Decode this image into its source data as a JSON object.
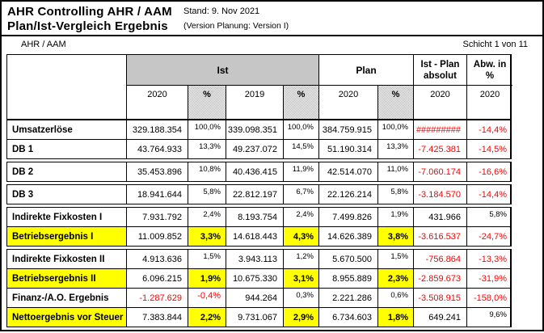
{
  "title": {
    "line1": "AHR Controlling AHR / AAM",
    "line2": "Plan/Ist-Vergleich Ergebnis",
    "stand": "Stand: 9. Nov 2021",
    "version": "(Version Planung: Version I)"
  },
  "meta": {
    "unit": "AHR / AAM",
    "schicht": "Schicht 1 von 11"
  },
  "colors": {
    "header_gray": "#c6c6c6",
    "highlight_yellow": "#ffff00",
    "negative_red": "#ff0000"
  },
  "table": {
    "groups": {
      "ist": "Ist",
      "plan": "Plan",
      "ist_plan": "Ist - Plan absolut",
      "abw": "Abw. in %"
    },
    "subheaders": {
      "ist_2020": "2020",
      "ist_pct_1": "%",
      "ist_2019": "2019",
      "ist_pct_2": "%",
      "plan_2020": "2020",
      "plan_pct": "%",
      "diff_2020": "2020",
      "abw_2020": "2020"
    },
    "rows": [
      {
        "label": "Umsatzerlöse",
        "ist2020": "329.188.354",
        "istPct2020": "100,0%",
        "ist2019": "339.098.351",
        "istPct2019": "100,0%",
        "plan2020": "384.759.915",
        "planPct": "100,0%",
        "diff": "#########",
        "abw": "-14,4%"
      },
      {
        "label": "DB 1",
        "ist2020": "43.764.933",
        "istPct2020": "13,3%",
        "ist2019": "49.237.072",
        "istPct2019": "14,5%",
        "plan2020": "51.190.314",
        "planPct": "13,3%",
        "diff": "-7.425.381",
        "abw": "-14,5%"
      },
      {
        "label": "DB 2",
        "ist2020": "35.453.896",
        "istPct2020": "10,8%",
        "ist2019": "40.436.415",
        "istPct2019": "11,9%",
        "plan2020": "42.514.070",
        "planPct": "11,0%",
        "diff": "-7.060.174",
        "abw": "-16,6%"
      },
      {
        "label": "DB 3",
        "ist2020": "18.941.644",
        "istPct2020": "5,8%",
        "ist2019": "22.812.197",
        "istPct2019": "6,7%",
        "plan2020": "22.126.214",
        "planPct": "5,8%",
        "diff": "-3.184.570",
        "abw": "-14,4%"
      },
      {
        "label": "Indirekte Fixkosten I",
        "ist2020": "7.931.792",
        "istPct2020": "2,4%",
        "ist2019": "8.193.754",
        "istPct2019": "2,4%",
        "plan2020": "7.499.826",
        "planPct": "1,9%",
        "diff": "431.966",
        "abw": "5,8%"
      },
      {
        "label": "Betriebsergebnis I",
        "ist2020": "11.009.852",
        "istPct2020": "3,3%",
        "ist2019": "14.618.443",
        "istPct2019": "4,3%",
        "plan2020": "14.626.389",
        "planPct": "3,8%",
        "diff": "-3.616.537",
        "abw": "-24,7%"
      },
      {
        "label": "Indirekte Fixkosten II",
        "ist2020": "4.913.636",
        "istPct2020": "1,5%",
        "ist2019": "3.943.113",
        "istPct2019": "1,2%",
        "plan2020": "5.670.500",
        "planPct": "1,5%",
        "diff": "-756.864",
        "abw": "-13,3%"
      },
      {
        "label": "Betriebsergebnis II",
        "ist2020": "6.096.215",
        "istPct2020": "1,9%",
        "ist2019": "10.675.330",
        "istPct2019": "3,1%",
        "plan2020": "8.955.889",
        "planPct": "2,3%",
        "diff": "-2.859.673",
        "abw": "-31,9%"
      },
      {
        "label": "Finanz-/A.O. Ergebnis",
        "ist2020": "-1.287.629",
        "istPct2020": "-0,4%",
        "ist2019": "944.264",
        "istPct2019": "0,3%",
        "plan2020": "2.221.286",
        "planPct": "0,6%",
        "diff": "-3.508.915",
        "abw": "-158,0%"
      },
      {
        "label": "Nettoergebnis vor Steuer",
        "ist2020": "7.383.844",
        "istPct2020": "2,2%",
        "ist2019": "9.731.067",
        "istPct2019": "2,9%",
        "plan2020": "6.734.603",
        "planPct": "1,8%",
        "diff": "649.241",
        "abw": "9,6%"
      }
    ]
  }
}
